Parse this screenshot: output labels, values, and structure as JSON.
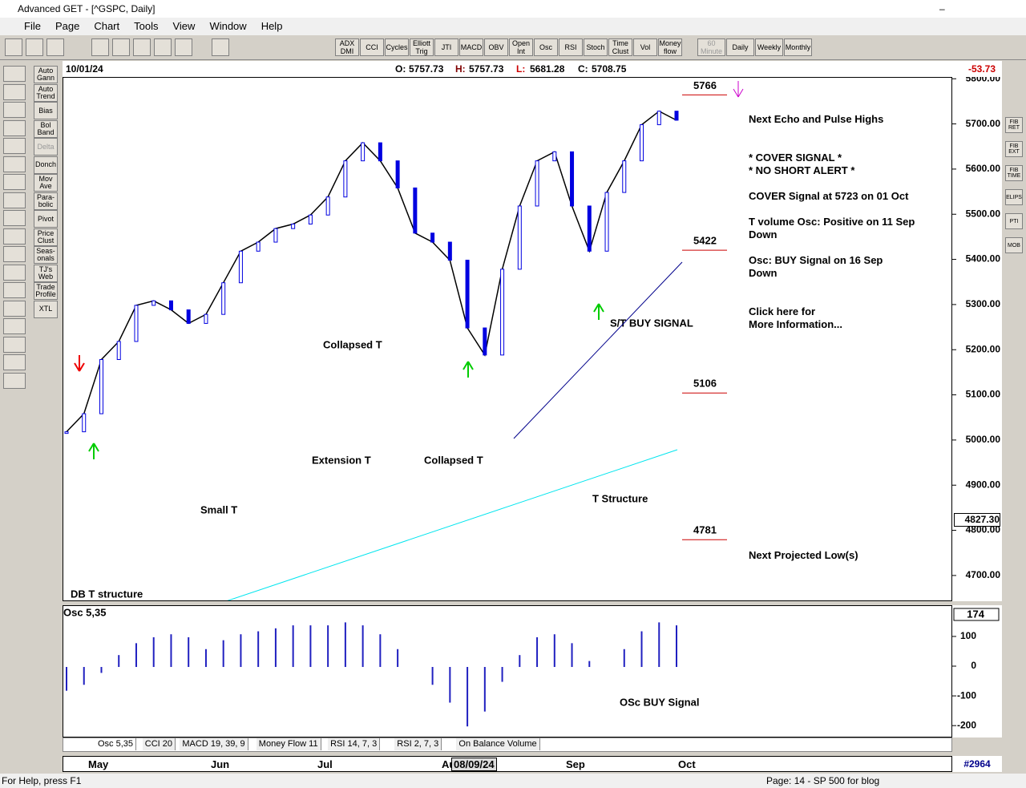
{
  "window": {
    "title": "Advanced GET - [^GSPC, Daily]"
  },
  "menu": [
    "File",
    "Page",
    "Chart",
    "Tools",
    "View",
    "Window",
    "Help"
  ],
  "toolbar": {
    "indicators": [
      "ADX DMI",
      "CCI",
      "Cycles",
      "Elliott Trig",
      "JTI",
      "MACD",
      "OBV",
      "Open Int",
      "Osc",
      "RSI",
      "Stoch",
      "Time Clust",
      "Vol",
      "Money flow"
    ],
    "periods": [
      "60 Minute",
      "Daily",
      "Weekly",
      "Monthly"
    ]
  },
  "left_tools": [
    "Auto Gann",
    "Auto Trend",
    "Bias",
    "Bol Band",
    "Delta",
    "Donch",
    "Mov Ave",
    "Para-bolic",
    "Pivot",
    "Price Clust",
    "Seas-onals",
    "TJ's Web",
    "Trade Profile",
    "XTL"
  ],
  "right_tools": [
    "FIB RET",
    "FIB EXT",
    "FIB TIME",
    "ELIPS",
    "PTI",
    "MOB"
  ],
  "quote": {
    "date": "10/01/24",
    "labels": [
      "O:",
      "H:",
      "L:",
      "C:"
    ],
    "open": 5757.73,
    "high": 5757.73,
    "low": 5681.28,
    "close": 5708.75,
    "change": -53.73
  },
  "price_chart": {
    "type": "line",
    "ylim": [
      4643,
      5804
    ],
    "yticks": [
      {
        "value": 5800,
        "label": "5800.00"
      },
      {
        "value": 5700,
        "label": "5700.00"
      },
      {
        "value": 5600,
        "label": "5600.00"
      },
      {
        "value": 5500,
        "label": "5500.00"
      },
      {
        "value": 5400,
        "label": "5400.00"
      },
      {
        "value": 5300,
        "label": "5300.00"
      },
      {
        "value": 5200,
        "label": "5200.00"
      },
      {
        "value": 5100,
        "label": "5100.00"
      },
      {
        "value": 5000,
        "label": "5000.00"
      },
      {
        "value": 4900,
        "label": "4900.00"
      },
      {
        "value": 4800,
        "label": "4800.00"
      },
      {
        "value": 4700,
        "label": "4700.00"
      }
    ],
    "closes": [
      5020,
      5060,
      5180,
      5220,
      5300,
      5310,
      5290,
      5260,
      5280,
      5350,
      5420,
      5440,
      5470,
      5480,
      5500,
      5540,
      5620,
      5660,
      5620,
      5560,
      5460,
      5440,
      5400,
      5250,
      5190,
      5380,
      5520,
      5620,
      5640,
      5520,
      5420,
      5550,
      5620,
      5700,
      5730,
      5710
    ],
    "levels": [
      5766,
      5422,
      5106,
      4781
    ],
    "annotations": [
      "Collapsed T",
      "Extension T",
      "Collapsed T",
      "Small T",
      "T Structure",
      "DB T structure",
      "S/T BUY SIGNAL"
    ],
    "last_label": "4827.30",
    "x_labels": [
      "May",
      "Jun",
      "Jul",
      "Aug",
      "Sep",
      "Oct"
    ],
    "date_box": "08/09/24",
    "counter": "#2964"
  },
  "signals": [
    "Next Echo and Pulse Highs",
    "* COVER SIGNAL *",
    "* NO SHORT ALERT *",
    "COVER Signal at 5723 on 01 Oct",
    "T volume Osc: Positive on 11 Sep",
    "Down",
    "Osc: BUY Signal on 16 Sep",
    "Down",
    "Click here for",
    "More Information...",
    "Next Projected Low(s)"
  ],
  "osc_chart": {
    "type": "bar",
    "title": "Osc 5,35",
    "value_label": "174",
    "ylim": [
      -240,
      205
    ],
    "yticks": [
      100,
      0,
      -100,
      -200
    ],
    "values": [
      -80,
      -60,
      -20,
      40,
      80,
      100,
      110,
      100,
      60,
      90,
      110,
      120,
      130,
      140,
      140,
      140,
      150,
      140,
      110,
      60,
      0,
      -60,
      -120,
      -200,
      -150,
      -50,
      40,
      100,
      110,
      80,
      20,
      0,
      60,
      120,
      150,
      140
    ],
    "annotation": "OSc BUY Signal"
  },
  "tabs": [
    "Osc 5,35",
    "CCI 20",
    "MACD 19, 39, 9",
    "Money Flow 11",
    "RSI 14, 7, 3",
    "RSI 2, 7, 3",
    "On Balance Volume"
  ],
  "status": {
    "help": "For Help, press F1",
    "page": "Page: 14 - SP 500 for blog"
  }
}
